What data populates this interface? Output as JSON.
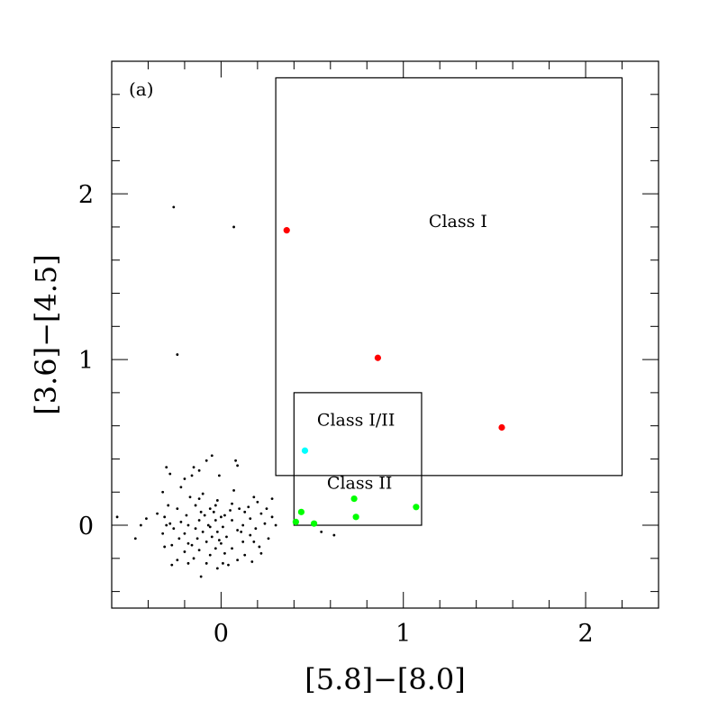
{
  "chart_data": {
    "type": "scatter",
    "panel_label": "(a)",
    "xlabel": "[5.8]−[8.0]",
    "ylabel": "[3.6]−[4.5]",
    "xlim": [
      -0.6,
      2.4
    ],
    "ylim": [
      -0.5,
      2.8
    ],
    "x_major_ticks": [
      0,
      1,
      2
    ],
    "x_tick_labels": [
      "0",
      "1",
      "2"
    ],
    "y_major_ticks": [
      0,
      1,
      2
    ],
    "y_tick_labels": [
      "0",
      "1",
      "2"
    ],
    "x_minor_step": 0.2,
    "y_minor_step": 0.2,
    "grid": false,
    "regions": [
      {
        "label": "Class I",
        "x0": 0.3,
        "x1": 2.2,
        "y0": 0.3,
        "y1": 2.7,
        "label_x": 1.3,
        "label_y": 1.8
      },
      {
        "label": "Class I/II",
        "x0": 0.4,
        "x1": 1.1,
        "y0": 0.0,
        "y1": 0.8,
        "label_x": 0.74,
        "label_y": 0.6
      },
      {
        "label": "Class II",
        "x0": 0.4,
        "x1": 1.1,
        "y0": 0.0,
        "y1": 0.8,
        "label_x": 0.76,
        "label_y": 0.22
      }
    ],
    "series": [
      {
        "class": "field",
        "color": "#000000",
        "marker": "dot",
        "points": [
          [
            -0.26,
            1.92
          ],
          [
            0.07,
            1.8
          ],
          [
            -0.24,
            1.03
          ],
          [
            -0.05,
            0.42
          ],
          [
            0.08,
            0.39
          ],
          [
            0.09,
            0.36
          ],
          [
            -0.3,
            0.35
          ],
          [
            -0.15,
            0.35
          ],
          [
            -0.12,
            0.33
          ],
          [
            -0.08,
            0.39
          ],
          [
            -0.2,
            0.28
          ],
          [
            -0.28,
            0.31
          ],
          [
            -0.01,
            0.3
          ],
          [
            -0.16,
            0.3
          ],
          [
            -0.17,
            0.17
          ],
          [
            -0.12,
            0.16
          ],
          [
            -0.32,
            0.2
          ],
          [
            -0.02,
            0.15
          ],
          [
            0.18,
            0.17
          ],
          [
            0.2,
            0.14
          ],
          [
            0.28,
            0.16
          ],
          [
            -0.03,
            0.12
          ],
          [
            0.06,
            0.13
          ],
          [
            0.1,
            0.1
          ],
          [
            -0.06,
            0.1
          ],
          [
            -0.14,
            0.12
          ],
          [
            -0.24,
            0.1
          ],
          [
            -0.29,
            0.12
          ],
          [
            0.13,
            0.08
          ],
          [
            0.22,
            0.07
          ],
          [
            0.02,
            0.06
          ],
          [
            -0.09,
            0.06
          ],
          [
            -0.19,
            0.06
          ],
          [
            -0.35,
            0.07
          ],
          [
            -0.31,
            0.05
          ],
          [
            -0.41,
            0.04
          ],
          [
            0.28,
            0.05
          ],
          [
            0.16,
            0.04
          ],
          [
            0.06,
            0.03
          ],
          [
            -0.03,
            0.03
          ],
          [
            -0.12,
            0.03
          ],
          [
            -0.22,
            0.02
          ],
          [
            -0.28,
            0.01
          ],
          [
            -0.57,
            0.05
          ],
          [
            0.24,
            0.01
          ],
          [
            0.12,
            0.0
          ],
          [
            0.01,
            -0.01
          ],
          [
            -0.06,
            -0.01
          ],
          [
            -0.14,
            -0.02
          ],
          [
            -0.18,
            0.0
          ],
          [
            -0.26,
            -0.02
          ],
          [
            -0.3,
            0.0
          ],
          [
            -0.44,
            0.0
          ],
          [
            0.3,
            0.0
          ],
          [
            0.19,
            -0.02
          ],
          [
            0.09,
            -0.03
          ],
          [
            -0.02,
            -0.04
          ],
          [
            -0.1,
            -0.04
          ],
          [
            -0.2,
            -0.05
          ],
          [
            -0.32,
            -0.05
          ],
          [
            0.16,
            -0.06
          ],
          [
            0.03,
            -0.07
          ],
          [
            -0.05,
            -0.07
          ],
          [
            -0.13,
            -0.08
          ],
          [
            -0.23,
            -0.08
          ],
          [
            -0.47,
            -0.08
          ],
          [
            0.26,
            -0.08
          ],
          [
            0.12,
            -0.1
          ],
          [
            0.0,
            -0.11
          ],
          [
            -0.08,
            -0.1
          ],
          [
            -0.18,
            -0.11
          ],
          [
            -0.27,
            -0.12
          ],
          [
            0.21,
            -0.13
          ],
          [
            0.06,
            -0.14
          ],
          [
            -0.03,
            -0.14
          ],
          [
            -0.12,
            -0.15
          ],
          [
            -0.2,
            -0.16
          ],
          [
            -0.31,
            -0.13
          ],
          [
            0.22,
            -0.17
          ],
          [
            0.13,
            -0.18
          ],
          [
            0.02,
            -0.17
          ],
          [
            -0.06,
            -0.18
          ],
          [
            -0.15,
            -0.2
          ],
          [
            -0.24,
            -0.21
          ],
          [
            0.09,
            -0.21
          ],
          [
            0.01,
            -0.23
          ],
          [
            -0.08,
            -0.23
          ],
          [
            -0.18,
            -0.23
          ],
          [
            -0.27,
            -0.24
          ],
          [
            0.17,
            -0.22
          ],
          [
            0.04,
            -0.24
          ],
          [
            -0.02,
            -0.26
          ],
          [
            -0.11,
            -0.31
          ],
          [
            0.55,
            -0.04
          ],
          [
            0.62,
            -0.06
          ],
          [
            -0.04,
            0.08
          ],
          [
            0.05,
            0.09
          ],
          [
            0.15,
            0.11
          ],
          [
            -0.1,
            0.19
          ],
          [
            0.07,
            0.21
          ],
          [
            -0.22,
            0.23
          ],
          [
            0.0,
            0.05
          ],
          [
            -0.16,
            -0.12
          ],
          [
            0.11,
            -0.04
          ],
          [
            -0.07,
            0.0
          ],
          [
            0.18,
            -0.1
          ],
          [
            -0.01,
            -0.09
          ],
          [
            0.25,
            0.1
          ],
          [
            -0.11,
            0.08
          ]
        ]
      },
      {
        "class": "Class I",
        "color": "#ff0000",
        "marker": "filled-circle",
        "points": [
          [
            0.36,
            1.78
          ],
          [
            0.86,
            1.01
          ],
          [
            1.54,
            0.59
          ]
        ]
      },
      {
        "class": "Class I/II",
        "color": "#00ffff",
        "marker": "filled-circle",
        "points": [
          [
            0.46,
            0.45
          ]
        ]
      },
      {
        "class": "Class II",
        "color": "#00ff00",
        "marker": "filled-circle",
        "points": [
          [
            0.73,
            0.16
          ],
          [
            0.44,
            0.08
          ],
          [
            0.74,
            0.05
          ],
          [
            1.07,
            0.11
          ],
          [
            0.51,
            0.01
          ],
          [
            0.41,
            0.02
          ]
        ]
      }
    ]
  }
}
